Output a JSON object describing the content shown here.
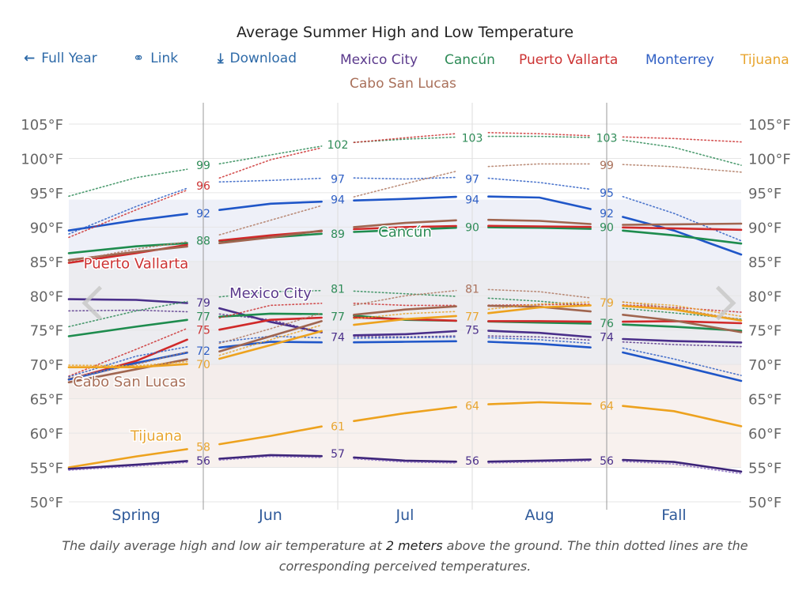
{
  "title": "Average Summer High and Low Temperature",
  "toolbar": {
    "full_year": {
      "icon": "arrow-left-icon",
      "glyph": "←",
      "label": "Full Year"
    },
    "link": {
      "icon": "link-icon",
      "glyph": "⚭",
      "label": "Link"
    },
    "download": {
      "icon": "download-icon",
      "glyph": "⤓",
      "label": "Download"
    }
  },
  "legend": [
    {
      "label": "Mexico City",
      "color": "#5b3a8c"
    },
    {
      "label": "Cancún",
      "color": "#2e8b57"
    },
    {
      "label": "Puerto Vallarta",
      "color": "#cc3333"
    },
    {
      "label": "Monterrey",
      "color": "#2f5fc4"
    },
    {
      "label": "Tijuana",
      "color": "#e8a530"
    },
    {
      "label": "Cabo San Lucas",
      "color": "#a9705a"
    }
  ],
  "caption": {
    "before": "The daily average high and low air temperature at ",
    "bold": "2 meters",
    "after": " above the ground. The thin dotted lines are the corresponding perceived temperatures."
  },
  "chart_data": {
    "type": "line",
    "title": "Average Summer High and Low Temperature",
    "xlabel": "",
    "ylabel": "",
    "x_ticks": [
      "Spring",
      "Jun",
      "Jul",
      "Aug",
      "Fall"
    ],
    "x_dividers": [
      "Jun 1",
      "Jul 1",
      "Aug 1",
      "Sep 1"
    ],
    "x": [
      0,
      0.5,
      1,
      1.5,
      2,
      2.5,
      3,
      3.5,
      4,
      4.5,
      5
    ],
    "ylim": [
      50,
      105
    ],
    "y_ticks": [
      "50°F",
      "55°F",
      "60°F",
      "65°F",
      "70°F",
      "75°F",
      "80°F",
      "85°F",
      "90°F",
      "95°F",
      "100°F",
      "105°F"
    ],
    "y_tick_values": [
      50,
      55,
      60,
      65,
      70,
      75,
      80,
      85,
      90,
      95,
      100,
      105
    ],
    "grid": true,
    "series": [
      {
        "name": "Monterrey high",
        "city": "Monterrey",
        "kind": "high",
        "color": "#1f56c8",
        "values": [
          89.5,
          91,
          92.2,
          93.4,
          93.8,
          94.1,
          94.5,
          94.3,
          92.1,
          89.5,
          86
        ]
      },
      {
        "name": "Monterrey high perceived",
        "city": "Monterrey",
        "kind": "high-perceived",
        "color": "#2f5fc4",
        "values": [
          89,
          93,
          96.5,
          96.8,
          97.2,
          97.0,
          97.3,
          96.5,
          95.2,
          92,
          88
        ]
      },
      {
        "name": "Cancún high",
        "city": "Cancún",
        "kind": "high",
        "color": "#1e8c4e",
        "values": [
          86.2,
          87.2,
          87.8,
          88.5,
          89.2,
          89.6,
          90,
          89.9,
          89.7,
          88.8,
          87.6
        ]
      },
      {
        "name": "Cancún high perceived",
        "city": "Cancún",
        "kind": "high-perceived",
        "color": "#2e8b57",
        "values": [
          94.5,
          97.2,
          98.8,
          100.5,
          102.2,
          102.8,
          103.2,
          103.2,
          103.0,
          101.6,
          99
        ]
      },
      {
        "name": "Puerto Vallarta high",
        "city": "Puerto Vallarta",
        "kind": "high",
        "color": "#d02a2a",
        "values": [
          84.8,
          86.2,
          87.8,
          88.8,
          89.6,
          90,
          90.2,
          90.1,
          90.0,
          89.8,
          89.6
        ]
      },
      {
        "name": "Puerto Vallarta high perceived",
        "city": "Puerto Vallarta",
        "kind": "high-perceived",
        "color": "#cc3333",
        "values": [
          88.5,
          92.5,
          96.3,
          99.8,
          102.1,
          103.0,
          103.8,
          103.6,
          103.2,
          102.9,
          102.4
        ]
      },
      {
        "name": "Cabo San Lucas high",
        "city": "Cabo San Lucas",
        "kind": "high",
        "color": "#a0654f",
        "values": [
          85.2,
          86.4,
          87.4,
          88.5,
          89.8,
          90.6,
          91.1,
          90.9,
          90.3,
          90.4,
          90.5
        ]
      },
      {
        "name": "Cabo San Lucas high perceived",
        "city": "Cabo San Lucas",
        "kind": "high-perceived",
        "color": "#b07a63",
        "values": [
          85,
          86.8,
          88.2,
          91,
          93.8,
          96.3,
          98.7,
          99.2,
          99.2,
          98.8,
          98
        ]
      },
      {
        "name": "Mexico City low",
        "city": "Mexico City",
        "kind": "high",
        "color": "#4a2f8a",
        "values": [
          79.5,
          79.4,
          78.8,
          76.2,
          74.2,
          74.4,
          75.0,
          74.6,
          73.8,
          73.4,
          73.2
        ]
      },
      {
        "name": "Mexico City high perceived",
        "city": "Mexico City",
        "kind": "high-perceived",
        "color": "#5b3a8c",
        "values": [
          77.8,
          77.9,
          77.6,
          76.5,
          74.1,
          74.0,
          74.2,
          74.0,
          73.4,
          72.9,
          72.6
        ]
      },
      {
        "name": "Cancún low",
        "city": "Cancún",
        "kind": "low",
        "color": "#1e8c4e",
        "values": [
          74.1,
          75.5,
          76.8,
          77.4,
          77.3,
          76.5,
          76.3,
          76.1,
          75.9,
          75.5,
          74.9
        ]
      },
      {
        "name": "Cancún low perceived",
        "city": "Cancún",
        "kind": "low-perceived",
        "color": "#2e8b57",
        "values": [
          75.5,
          77.8,
          79.6,
          80.6,
          80.8,
          80.3,
          79.8,
          79.2,
          78.4,
          77.5,
          76.6
        ]
      },
      {
        "name": "Puerto Vallarta low",
        "city": "Puerto Vallarta",
        "kind": "low",
        "color": "#d02a2a",
        "values": [
          67.8,
          70.5,
          74.6,
          76.5,
          76.9,
          76.6,
          76.3,
          76.3,
          76.2,
          76.3,
          76.0
        ]
      },
      {
        "name": "Puerto Vallarta low perceived",
        "city": "Puerto Vallarta",
        "kind": "low-perceived",
        "color": "#cc3333",
        "values": [
          68.3,
          72.2,
          76.2,
          78.6,
          79.0,
          78.6,
          78.6,
          78.7,
          78.8,
          78.3,
          77.6
        ]
      },
      {
        "name": "Monterrey low",
        "city": "Monterrey",
        "kind": "low",
        "color": "#1f56c8",
        "values": [
          67.8,
          70.2,
          72.2,
          73.3,
          73.2,
          73.3,
          73.4,
          73.0,
          72.3,
          70.0,
          67.6
        ]
      },
      {
        "name": "Monterrey low perceived",
        "city": "Monterrey",
        "kind": "low-perceived",
        "color": "#2f5fc4",
        "values": [
          68.2,
          71.2,
          73.0,
          74.1,
          73.8,
          73.9,
          74.0,
          73.6,
          72.9,
          70.8,
          68.4
        ]
      },
      {
        "name": "Cabo San Lucas low",
        "city": "Cabo San Lucas",
        "kind": "low",
        "color": "#a0654f",
        "values": [
          67.4,
          69.3,
          71.2,
          74.1,
          77.0,
          78.0,
          78.6,
          78.4,
          77.5,
          76.4,
          74.7
        ]
      },
      {
        "name": "Cabo San Lucas low perceived",
        "city": "Cabo San Lucas",
        "kind": "low-perceived",
        "color": "#b07a63",
        "values": [
          68.0,
          70.0,
          72.4,
          75.2,
          78.2,
          80.0,
          81.0,
          80.6,
          79.4,
          78.2,
          76.5
        ]
      },
      {
        "name": "Tijuana low",
        "city": "Tijuana",
        "kind": "low",
        "color": "#eda21e",
        "values": [
          69.6,
          69.6,
          70.2,
          72.8,
          75.5,
          76.6,
          77.2,
          78.3,
          78.7,
          78.0,
          76.4
        ]
      },
      {
        "name": "Tijuana low perceived",
        "city": "Tijuana",
        "kind": "low-perceived",
        "color": "#e8a530",
        "values": [
          69.9,
          69.8,
          70.6,
          73.6,
          76.4,
          77.4,
          77.8,
          78.8,
          79.2,
          78.6,
          77.0
        ]
      },
      {
        "name": "Tijuana high",
        "city": "Tijuana",
        "kind": "high-2",
        "color": "#eda21e",
        "values": [
          55.0,
          56.6,
          58.0,
          59.6,
          61.4,
          62.9,
          64.1,
          64.5,
          64.2,
          63.2,
          61.0
        ]
      },
      {
        "name": "Mexico City high-low",
        "city": "Mexico City",
        "kind": "low-2",
        "color": "#3c2478",
        "values": [
          54.8,
          55.4,
          56.1,
          56.8,
          56.6,
          56.0,
          55.8,
          56.0,
          56.2,
          55.8,
          54.4
        ]
      },
      {
        "name": "Mexico City low perceived",
        "city": "Mexico City",
        "kind": "low-2-perceived",
        "color": "#8a6cc0",
        "values": [
          54.6,
          55.2,
          55.9,
          56.6,
          56.4,
          55.8,
          55.6,
          55.8,
          56.0,
          55.5,
          54.1
        ]
      }
    ],
    "point_labels": [
      {
        "x": 1,
        "y": 99,
        "text": "99",
        "color": "#2e8b57"
      },
      {
        "x": 1,
        "y": 96,
        "text": "96",
        "color": "#cc3333"
      },
      {
        "x": 1,
        "y": 92,
        "text": "92",
        "color": "#2f5fc4"
      },
      {
        "x": 1,
        "y": 88,
        "text": "88",
        "color": "#2e8b57"
      },
      {
        "x": 1,
        "y": 79,
        "text": "79",
        "color": "#4a2f8a"
      },
      {
        "x": 1,
        "y": 77,
        "text": "77",
        "color": "#2e8b57"
      },
      {
        "x": 1,
        "y": 75,
        "text": "75",
        "color": "#cc3333"
      },
      {
        "x": 1,
        "y": 72,
        "text": "72",
        "color": "#2f5fc4"
      },
      {
        "x": 1,
        "y": 70,
        "text": "70",
        "color": "#e8a530"
      },
      {
        "x": 1,
        "y": 58,
        "text": "58",
        "color": "#e8a530"
      },
      {
        "x": 1,
        "y": 56,
        "text": "56",
        "color": "#4a2f8a"
      },
      {
        "x": 2,
        "y": 102,
        "text": "102",
        "color": "#2e8b57"
      },
      {
        "x": 2,
        "y": 97,
        "text": "97",
        "color": "#2f5fc4"
      },
      {
        "x": 2,
        "y": 94,
        "text": "94",
        "color": "#2f5fc4"
      },
      {
        "x": 2,
        "y": 89,
        "text": "89",
        "color": "#2e8b57"
      },
      {
        "x": 2,
        "y": 81,
        "text": "81",
        "color": "#2e8b57"
      },
      {
        "x": 2,
        "y": 77,
        "text": "77",
        "color": "#2e8b57"
      },
      {
        "x": 2,
        "y": 74,
        "text": "74",
        "color": "#4a2f8a"
      },
      {
        "x": 2,
        "y": 61,
        "text": "61",
        "color": "#e8a530"
      },
      {
        "x": 2,
        "y": 57,
        "text": "57",
        "color": "#4a2f8a"
      },
      {
        "x": 3,
        "y": 103,
        "text": "103",
        "color": "#2e8b57"
      },
      {
        "x": 3,
        "y": 97,
        "text": "97",
        "color": "#2f5fc4"
      },
      {
        "x": 3,
        "y": 94,
        "text": "94",
        "color": "#2f5fc4"
      },
      {
        "x": 3,
        "y": 90,
        "text": "90",
        "color": "#2e8b57"
      },
      {
        "x": 3,
        "y": 81,
        "text": "81",
        "color": "#a9705a"
      },
      {
        "x": 3,
        "y": 77,
        "text": "77",
        "color": "#e8a530"
      },
      {
        "x": 3,
        "y": 75,
        "text": "75",
        "color": "#4a2f8a"
      },
      {
        "x": 3,
        "y": 64,
        "text": "64",
        "color": "#e8a530"
      },
      {
        "x": 3,
        "y": 56,
        "text": "56",
        "color": "#4a2f8a"
      },
      {
        "x": 4,
        "y": 103,
        "text": "103",
        "color": "#2e8b57"
      },
      {
        "x": 4,
        "y": 99,
        "text": "99",
        "color": "#a9705a"
      },
      {
        "x": 4,
        "y": 95,
        "text": "95",
        "color": "#2f5fc4"
      },
      {
        "x": 4,
        "y": 92,
        "text": "92",
        "color": "#2f5fc4"
      },
      {
        "x": 4,
        "y": 90,
        "text": "90",
        "color": "#2e8b57"
      },
      {
        "x": 4,
        "y": 79,
        "text": "79",
        "color": "#e8a530"
      },
      {
        "x": 4,
        "y": 76,
        "text": "76",
        "color": "#2e8b57"
      },
      {
        "x": 4,
        "y": 74,
        "text": "74",
        "color": "#4a2f8a"
      },
      {
        "x": 4,
        "y": 64,
        "text": "64",
        "color": "#e8a530"
      },
      {
        "x": 4,
        "y": 56,
        "text": "56",
        "color": "#4a2f8a"
      }
    ],
    "annotations": [
      {
        "text": "Puerto Vallarta",
        "x": 0.5,
        "y": 84,
        "color": "#cc3333"
      },
      {
        "text": "Cancún",
        "x": 2.5,
        "y": 88.6,
        "color": "#2e8b57"
      },
      {
        "text": "Mexico City",
        "x": 1.5,
        "y": 79.7,
        "color": "#5b3a8c"
      },
      {
        "text": "Cabo San Lucas",
        "x": 0.45,
        "y": 66.8,
        "color": "#a9705a"
      },
      {
        "text": "Tijuana",
        "x": 0.65,
        "y": 58.9,
        "color": "#e8a530"
      }
    ],
    "bands": {
      "high_band": {
        "from": 85,
        "to": 94,
        "color": "#e8eaf2"
      },
      "mid_band": {
        "from": 65,
        "to": 85,
        "color": "#ececf0"
      },
      "low_band": {
        "from": 55,
        "to": 70,
        "color": "#f6eeea"
      }
    }
  },
  "nav": {
    "prev_icon": "chevron-left-icon",
    "next_icon": "chevron-right-icon"
  }
}
